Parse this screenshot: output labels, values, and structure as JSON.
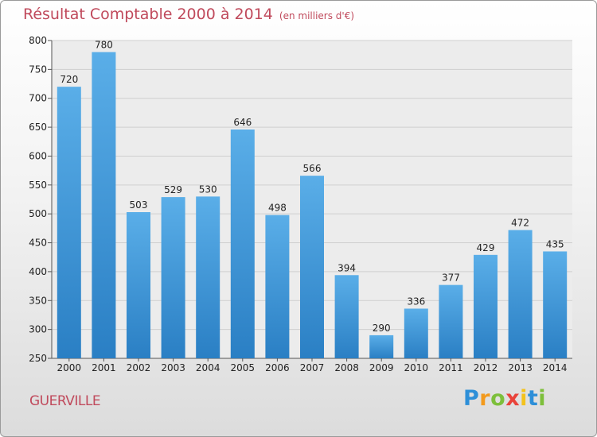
{
  "chart_data": {
    "type": "bar",
    "title": "Résultat Comptable 2000 à 2014",
    "subtitle": "(en milliers d'€)",
    "categories": [
      "2000",
      "2001",
      "2002",
      "2003",
      "2004",
      "2005",
      "2006",
      "2007",
      "2008",
      "2009",
      "2010",
      "2011",
      "2012",
      "2013",
      "2014"
    ],
    "values": [
      720,
      780,
      503,
      529,
      530,
      646,
      498,
      566,
      394,
      290,
      336,
      377,
      429,
      472,
      435
    ],
    "ylim": [
      250,
      800
    ],
    "yticks": [
      250,
      300,
      350,
      400,
      450,
      500,
      550,
      600,
      650,
      700,
      750,
      800
    ],
    "grid": true,
    "colors": {
      "bar_light": "#5aaee8",
      "bar_dark": "#2a7fc4",
      "title": "#c04a5c",
      "grid": "#cfcfcf"
    }
  },
  "footer": {
    "town": "GUERVILLE"
  },
  "logo": {
    "letters": [
      "P",
      "r",
      "o",
      "x",
      "i",
      "t",
      "i"
    ],
    "colors": [
      "#2d8fd8",
      "#f39a1d",
      "#7dbf3b",
      "#e9433a",
      "#f3c21d",
      "#2d8fd8",
      "#7dbf3b"
    ]
  }
}
